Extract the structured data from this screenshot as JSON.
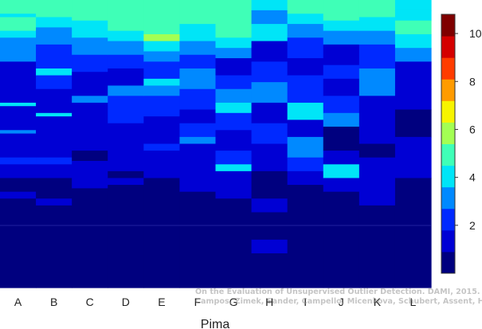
{
  "chart_data": {
    "type": "heatmap",
    "title": "",
    "xlabel": "Pima",
    "ylabel": "",
    "columns": [
      "A",
      "B",
      "C",
      "D",
      "E",
      "F",
      "G",
      "H",
      "I",
      "J",
      "K",
      "L"
    ],
    "colorbar": {
      "range": [
        0,
        10.8
      ],
      "ticks": [
        2,
        4,
        6,
        8,
        10
      ],
      "colors": [
        "#00007f",
        "#0000d4",
        "#0029ff",
        "#0089ff",
        "#00e5f7",
        "#3fffb7",
        "#a3ff53",
        "#f7f400",
        "#ff9b00",
        "#ff3c00",
        "#d40000",
        "#7f0000"
      ]
    },
    "rows_per_column": 84,
    "columns_data": [
      {
        "name": "A",
        "segments": [
          [
            0,
            4,
            5
          ],
          [
            4,
            5,
            4
          ],
          [
            5,
            9,
            5
          ],
          [
            9,
            11,
            4
          ],
          [
            11,
            18,
            3
          ],
          [
            18,
            30,
            1
          ],
          [
            30,
            31,
            4
          ],
          [
            31,
            38,
            1
          ],
          [
            38,
            39,
            3
          ],
          [
            39,
            46,
            1
          ],
          [
            46,
            48,
            2
          ],
          [
            48,
            52,
            1
          ],
          [
            52,
            56,
            0
          ],
          [
            56,
            58,
            1
          ],
          [
            58,
            84,
            0
          ]
        ]
      },
      {
        "name": "B",
        "segments": [
          [
            0,
            5,
            5
          ],
          [
            5,
            8,
            4
          ],
          [
            8,
            13,
            3
          ],
          [
            13,
            20,
            2
          ],
          [
            20,
            22,
            4
          ],
          [
            22,
            26,
            2
          ],
          [
            26,
            33,
            1
          ],
          [
            33,
            34,
            4
          ],
          [
            34,
            46,
            1
          ],
          [
            46,
            48,
            2
          ],
          [
            48,
            52,
            1
          ],
          [
            52,
            58,
            0
          ],
          [
            58,
            60,
            1
          ],
          [
            60,
            84,
            0
          ]
        ]
      },
      {
        "name": "C",
        "segments": [
          [
            0,
            6,
            5
          ],
          [
            6,
            8,
            4
          ],
          [
            8,
            11,
            4
          ],
          [
            11,
            16,
            3
          ],
          [
            16,
            21,
            2
          ],
          [
            21,
            28,
            1
          ],
          [
            28,
            30,
            3
          ],
          [
            30,
            34,
            1
          ],
          [
            34,
            44,
            1
          ],
          [
            44,
            47,
            0
          ],
          [
            47,
            55,
            1
          ],
          [
            55,
            84,
            0
          ]
        ]
      },
      {
        "name": "D",
        "segments": [
          [
            0,
            9,
            5
          ],
          [
            9,
            12,
            4
          ],
          [
            12,
            16,
            3
          ],
          [
            16,
            20,
            2
          ],
          [
            20,
            25,
            1
          ],
          [
            25,
            28,
            3
          ],
          [
            28,
            36,
            2
          ],
          [
            36,
            44,
            1
          ],
          [
            44,
            50,
            1
          ],
          [
            50,
            52,
            0
          ],
          [
            52,
            54,
            1
          ],
          [
            54,
            84,
            0
          ]
        ]
      },
      {
        "name": "E",
        "segments": [
          [
            0,
            10,
            5
          ],
          [
            10,
            12,
            6
          ],
          [
            12,
            15,
            4
          ],
          [
            15,
            18,
            3
          ],
          [
            18,
            23,
            2
          ],
          [
            23,
            25,
            4
          ],
          [
            25,
            28,
            3
          ],
          [
            28,
            34,
            2
          ],
          [
            34,
            36,
            1
          ],
          [
            36,
            42,
            1
          ],
          [
            42,
            44,
            2
          ],
          [
            44,
            52,
            1
          ],
          [
            52,
            84,
            0
          ]
        ]
      },
      {
        "name": "F",
        "segments": [
          [
            0,
            7,
            5
          ],
          [
            7,
            12,
            4
          ],
          [
            12,
            16,
            3
          ],
          [
            16,
            20,
            2
          ],
          [
            20,
            26,
            3
          ],
          [
            26,
            32,
            2
          ],
          [
            32,
            36,
            1
          ],
          [
            36,
            40,
            2
          ],
          [
            40,
            42,
            3
          ],
          [
            42,
            50,
            1
          ],
          [
            50,
            56,
            1
          ],
          [
            56,
            84,
            0
          ]
        ]
      },
      {
        "name": "G",
        "segments": [
          [
            0,
            11,
            5
          ],
          [
            11,
            14,
            4
          ],
          [
            14,
            17,
            3
          ],
          [
            17,
            22,
            1
          ],
          [
            22,
            26,
            2
          ],
          [
            26,
            30,
            3
          ],
          [
            30,
            33,
            4
          ],
          [
            33,
            38,
            2
          ],
          [
            38,
            44,
            1
          ],
          [
            44,
            48,
            2
          ],
          [
            48,
            50,
            4
          ],
          [
            50,
            58,
            1
          ],
          [
            58,
            84,
            0
          ]
        ]
      },
      {
        "name": "H",
        "segments": [
          [
            0,
            3,
            4
          ],
          [
            3,
            7,
            3
          ],
          [
            7,
            12,
            4
          ],
          [
            12,
            18,
            1
          ],
          [
            18,
            24,
            2
          ],
          [
            24,
            30,
            3
          ],
          [
            30,
            36,
            1
          ],
          [
            36,
            42,
            2
          ],
          [
            42,
            50,
            1
          ],
          [
            50,
            58,
            0
          ],
          [
            58,
            62,
            1
          ],
          [
            62,
            70,
            0
          ],
          [
            70,
            74,
            1
          ],
          [
            74,
            84,
            0
          ]
        ]
      },
      {
        "name": "I",
        "segments": [
          [
            0,
            4,
            5
          ],
          [
            4,
            7,
            4
          ],
          [
            7,
            11,
            3
          ],
          [
            11,
            17,
            2
          ],
          [
            17,
            22,
            1
          ],
          [
            22,
            30,
            2
          ],
          [
            30,
            35,
            4
          ],
          [
            35,
            40,
            1
          ],
          [
            40,
            46,
            3
          ],
          [
            46,
            50,
            2
          ],
          [
            50,
            54,
            1
          ],
          [
            54,
            84,
            0
          ]
        ]
      },
      {
        "name": "J",
        "segments": [
          [
            0,
            6,
            5
          ],
          [
            6,
            9,
            4
          ],
          [
            9,
            13,
            3
          ],
          [
            13,
            19,
            1
          ],
          [
            19,
            23,
            2
          ],
          [
            23,
            28,
            1
          ],
          [
            28,
            33,
            2
          ],
          [
            33,
            37,
            3
          ],
          [
            37,
            44,
            0
          ],
          [
            44,
            48,
            1
          ],
          [
            48,
            52,
            4
          ],
          [
            52,
            56,
            1
          ],
          [
            56,
            84,
            0
          ]
        ]
      },
      {
        "name": "K",
        "segments": [
          [
            0,
            5,
            5
          ],
          [
            5,
            9,
            4
          ],
          [
            9,
            13,
            3
          ],
          [
            13,
            20,
            2
          ],
          [
            20,
            28,
            3
          ],
          [
            28,
            36,
            1
          ],
          [
            36,
            42,
            1
          ],
          [
            42,
            46,
            0
          ],
          [
            46,
            54,
            1
          ],
          [
            54,
            60,
            1
          ],
          [
            60,
            84,
            0
          ]
        ]
      },
      {
        "name": "L",
        "segments": [
          [
            0,
            3,
            4
          ],
          [
            3,
            6,
            4
          ],
          [
            6,
            10,
            5
          ],
          [
            10,
            14,
            4
          ],
          [
            14,
            18,
            3
          ],
          [
            18,
            26,
            1
          ],
          [
            26,
            32,
            1
          ],
          [
            32,
            40,
            0
          ],
          [
            40,
            52,
            1
          ],
          [
            52,
            84,
            0
          ]
        ]
      }
    ]
  },
  "watermark": {
    "line1": "On the Evaluation of Unsupervised Outlier Detection. DAMI, 2015.",
    "line2": "Campos, Zimek, Sander, Campello, Micenkova, Schubert, Assent, Houle"
  }
}
